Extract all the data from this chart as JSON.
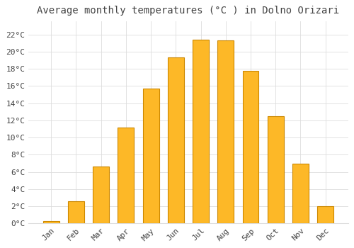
{
  "title": "Average monthly temperatures (°C ) in Dolno Orizari",
  "months": [
    "Jan",
    "Feb",
    "Mar",
    "Apr",
    "May",
    "Jun",
    "Jul",
    "Aug",
    "Sep",
    "Oct",
    "Nov",
    "Dec"
  ],
  "values": [
    0.3,
    2.6,
    6.6,
    11.2,
    15.7,
    19.3,
    21.4,
    21.3,
    17.8,
    12.5,
    7.0,
    2.0
  ],
  "bar_color": "#FDB827",
  "bar_edge_color": "#CC8800",
  "background_color": "#FFFFFF",
  "plot_bg_color": "#FFFFFF",
  "grid_color": "#DDDDDD",
  "text_color": "#444444",
  "ylim": [
    0,
    23.5
  ],
  "yticks": [
    0,
    2,
    4,
    6,
    8,
    10,
    12,
    14,
    16,
    18,
    20,
    22
  ],
  "title_fontsize": 10,
  "tick_fontsize": 8,
  "bar_width": 0.65
}
